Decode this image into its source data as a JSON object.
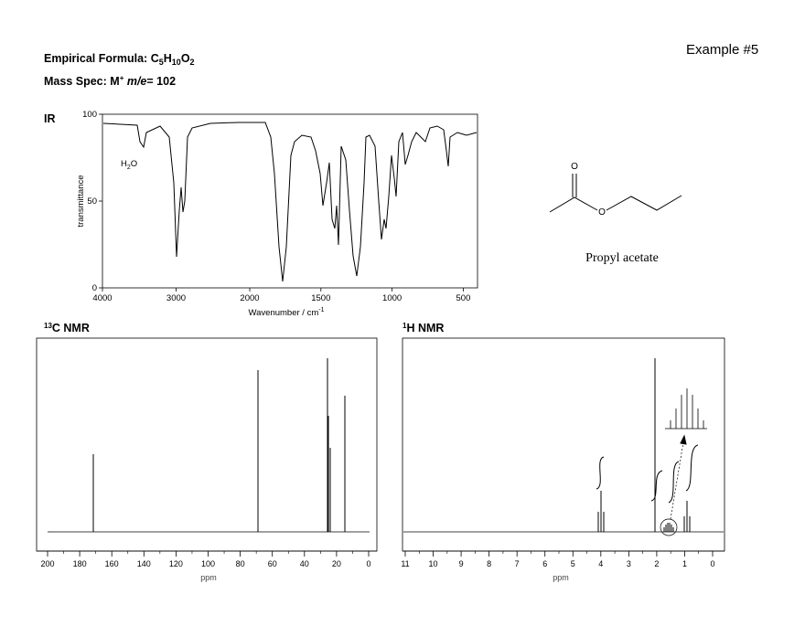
{
  "header": {
    "formula": {
      "label": "Empirical Formula:",
      "parts": [
        "C",
        "5",
        "H",
        "10",
        "O",
        "2"
      ]
    },
    "mass_spec": {
      "label": "Mass Spec:",
      "ion": "M",
      "charge": "+",
      "unit": "m/e",
      "value": "= 102"
    },
    "example": "Example #5"
  },
  "ir": {
    "label": "IR",
    "ylabel": "transmittance",
    "xlabel": "Wavenumber / cm",
    "xlabel_exp": "-1",
    "annotation": [
      "H",
      "2",
      "O"
    ],
    "xlim": [
      4000,
      400
    ],
    "xscale_break": 2000,
    "xticks": [
      4000,
      3000,
      2000,
      1500,
      1000,
      500
    ],
    "ylim": [
      0,
      100
    ],
    "yticks": [
      0,
      50,
      100
    ]
  },
  "structure": {
    "atoms": [
      "O",
      "O"
    ],
    "name": "Propyl acetate"
  },
  "c13": {
    "label": "C NMR",
    "isotope": "13",
    "xlabel": "ppm",
    "xlim": [
      200,
      0
    ],
    "xticks": [
      200,
      180,
      160,
      140,
      120,
      100,
      80,
      60,
      40,
      20,
      0
    ]
  },
  "h1": {
    "label": "H NMR",
    "isotope": "1",
    "xlabel": "ppm",
    "xlim": [
      11,
      0
    ],
    "xticks": [
      11,
      10,
      9,
      8,
      7,
      6,
      5,
      4,
      3,
      2,
      1,
      0
    ]
  }
}
